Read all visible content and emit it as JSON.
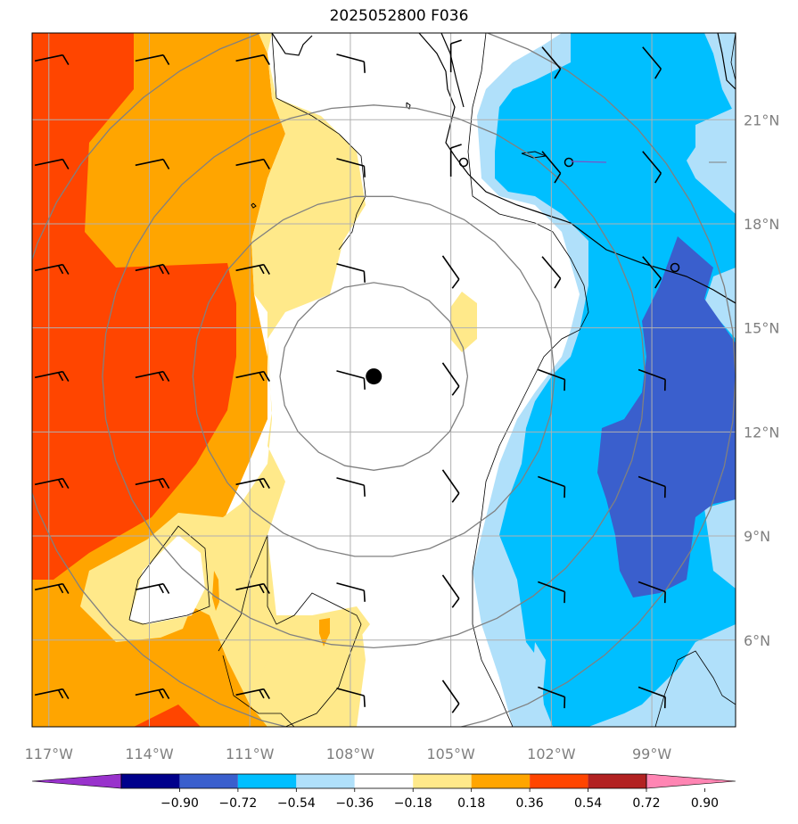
{
  "title": "2025052800 F036",
  "map": {
    "lon_range": [
      -117.5,
      -96.5
    ],
    "lat_range": [
      3.5,
      23.5
    ],
    "lon_ticks": [
      {
        "value": -117,
        "label": "117°W"
      },
      {
        "value": -114,
        "label": "114°W"
      },
      {
        "value": -111,
        "label": "111°W"
      },
      {
        "value": -108,
        "label": "108°W"
      },
      {
        "value": -105,
        "label": "105°W"
      },
      {
        "value": -102,
        "label": "102°W"
      },
      {
        "value": -99,
        "label": "99°W"
      }
    ],
    "lat_ticks": [
      {
        "value": 6,
        "label": "6°N"
      },
      {
        "value": 9,
        "label": "9°N"
      },
      {
        "value": 12,
        "label": "12°N"
      },
      {
        "value": 15,
        "label": "15°N"
      },
      {
        "value": 18,
        "label": "18°N"
      },
      {
        "value": 21,
        "label": "21°N"
      }
    ],
    "gridlines": true,
    "center_marker": {
      "lon": -107.3,
      "lat": 13.6
    },
    "range_rings_deg": [
      2.8,
      5.4,
      8.1,
      10.8
    ]
  },
  "colorbar": {
    "levels": [
      "−0.90",
      "−0.72",
      "−0.54",
      "−0.36",
      "−0.18",
      "0.18",
      "0.36",
      "0.54",
      "0.72",
      "0.90"
    ],
    "colors": [
      "#9932cc",
      "#00008b",
      "#3a5fcd",
      "#00bfff",
      "#b0e0fa",
      "#ffffff",
      "#ffe98a",
      "#ffa500",
      "#ff4500",
      "#b22222",
      "#ff85b3"
    ],
    "extend": "both"
  },
  "colors": {
    "red": "#ff4500",
    "orange": "#ffa500",
    "yellow": "#ffe98a",
    "lightblue": "#b0e0fa",
    "cyan": "#00bfff",
    "blue": "#3a5fcd",
    "ring": "#808080"
  }
}
